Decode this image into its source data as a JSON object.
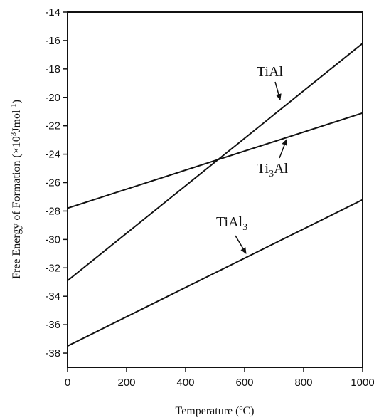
{
  "chart_data": {
    "type": "line",
    "title": "",
    "xlabel": "Temperature (ºC)",
    "ylabel_main": "Free Energy of Formation (",
    "ylabel_times": "×10",
    "ylabel_exp": "3",
    "ylabel_unit": "Jmol",
    "ylabel_unit_exp": "-1",
    "ylabel_close": ")",
    "xlim": [
      0,
      1000
    ],
    "ylim": [
      -39,
      -14
    ],
    "x_ticks": [
      0,
      200,
      400,
      600,
      800,
      1000
    ],
    "y_ticks": [
      -38,
      -36,
      -34,
      -32,
      -30,
      -28,
      -26,
      -24,
      -22,
      -20,
      -18,
      -16,
      -14
    ],
    "grid": false,
    "legend": "none",
    "series": [
      {
        "name": "TiAl",
        "label_base": "TiAl",
        "label_sub": "",
        "label_tail": "",
        "x": [
          0,
          1000
        ],
        "y": [
          -32.9,
          -16.2
        ]
      },
      {
        "name": "Ti3Al",
        "label_base": "Ti",
        "label_sub": "3",
        "label_tail": "Al",
        "x": [
          0,
          1000
        ],
        "y": [
          -27.8,
          -21.1
        ]
      },
      {
        "name": "TiAl3",
        "label_base": "TiAl",
        "label_sub": "3",
        "label_tail": "",
        "x": [
          0,
          1000
        ],
        "y": [
          -37.5,
          -27.2
        ]
      }
    ]
  }
}
